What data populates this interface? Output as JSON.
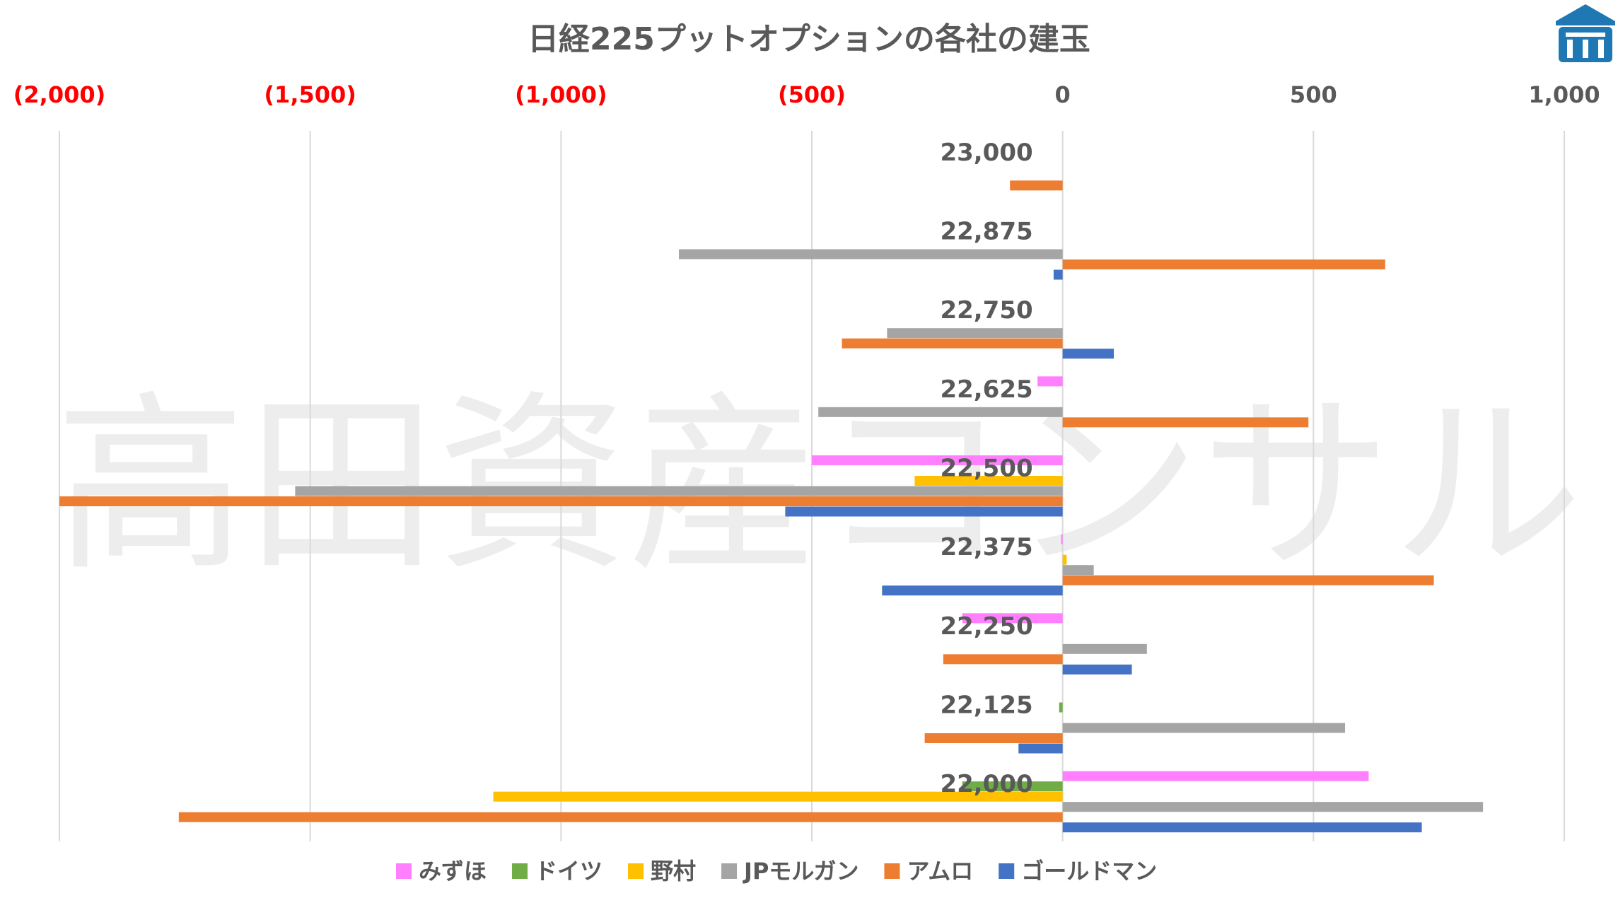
{
  "chart_data": {
    "type": "bar",
    "orientation": "horizontal",
    "title": "日経225プットオプションの各社の建玉",
    "watermark": "高田資産コンサル",
    "xlim": [
      -2000,
      1000
    ],
    "x_ticks": [
      {
        "value": -2000,
        "label": "(2,000)",
        "color": "#ff0000"
      },
      {
        "value": -1500,
        "label": "(1,500)",
        "color": "#ff0000"
      },
      {
        "value": -1000,
        "label": "(1,000)",
        "color": "#ff0000"
      },
      {
        "value": -500,
        "label": "(500)",
        "color": "#ff0000"
      },
      {
        "value": 0,
        "label": "0",
        "color": "#595959"
      },
      {
        "value": 500,
        "label": "500",
        "color": "#595959"
      },
      {
        "value": 1000,
        "label": "1,000",
        "color": "#595959"
      }
    ],
    "x_tick_position": "top",
    "grid": true,
    "legend": "bottom",
    "categories": [
      "23,000",
      "22,875",
      "22,750",
      "22,625",
      "22,500",
      "22,375",
      "22,250",
      "22,125",
      "22,000"
    ],
    "series": [
      {
        "name": "みずほ",
        "color": "#ff7fff",
        "values": [
          0,
          0,
          0,
          -50,
          -500,
          -3,
          -200,
          0,
          610
        ]
      },
      {
        "name": "ドイツ",
        "color": "#70ad47",
        "values": [
          0,
          0,
          0,
          0,
          0,
          0,
          0,
          -7,
          -200
        ]
      },
      {
        "name": "野村",
        "color": "#ffc000",
        "values": [
          0,
          0,
          0,
          0,
          -295,
          8,
          0,
          0,
          -1135
        ]
      },
      {
        "name": "JPモルガン",
        "color": "#a5a5a5",
        "values": [
          0,
          -765,
          -350,
          -487,
          -1530,
          62,
          168,
          563,
          838
        ]
      },
      {
        "name": "アムロ",
        "color": "#ed7d31",
        "values": [
          -105,
          643,
          -440,
          490,
          -2000,
          740,
          -238,
          -275,
          -1762
        ]
      },
      {
        "name": "ゴールドマン",
        "color": "#4472c4",
        "values": [
          0,
          -18,
          102,
          0,
          -553,
          -360,
          138,
          -88,
          716
        ]
      }
    ]
  },
  "logo": {
    "name": "building-logo",
    "color": "#1f78b4"
  }
}
